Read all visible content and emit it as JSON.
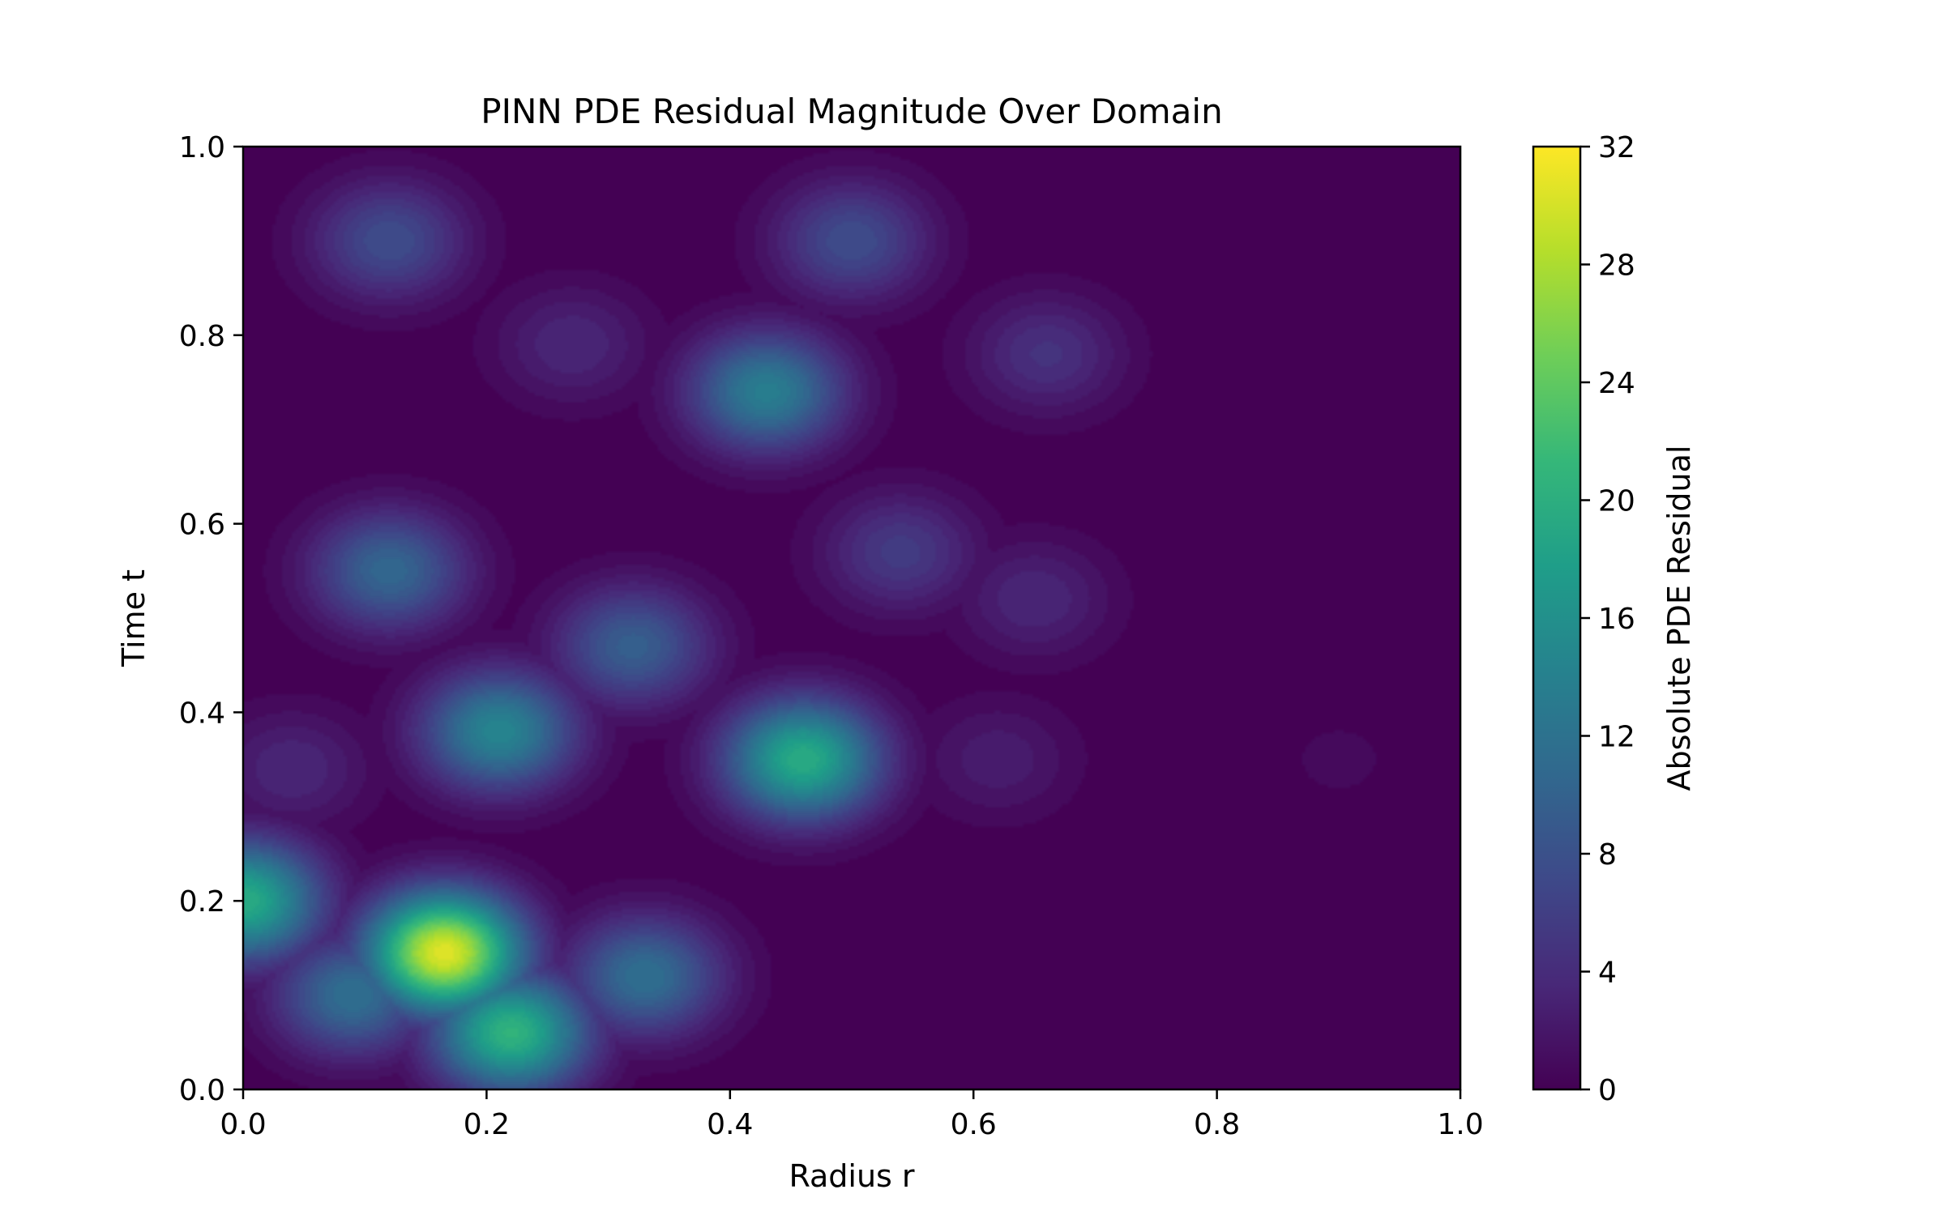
{
  "chart_data": {
    "type": "heatmap",
    "subtype": "filled-contour",
    "title": "PINN PDE Residual Magnitude Over Domain",
    "xlabel": "Radius r",
    "ylabel": "Time t",
    "xlim": [
      0.0,
      1.0
    ],
    "ylim": [
      0.0,
      1.0
    ],
    "x_ticks": [
      "0.0",
      "0.2",
      "0.4",
      "0.6",
      "0.8",
      "1.0"
    ],
    "y_ticks": [
      "0.0",
      "0.2",
      "0.4",
      "0.6",
      "0.8",
      "1.0"
    ],
    "colormap": "viridis",
    "colorbar": {
      "label": "Absolute PDE Residual",
      "range": [
        0,
        32
      ],
      "ticks": [
        "0",
        "4",
        "8",
        "12",
        "16",
        "20",
        "24",
        "28",
        "32"
      ]
    },
    "grid": false,
    "features": [
      {
        "r": 0.165,
        "t": 0.145,
        "value": 31
      },
      {
        "r": 0.22,
        "t": 0.06,
        "value": 21
      },
      {
        "r": 0.0,
        "t": 0.2,
        "value": 20
      },
      {
        "r": 0.46,
        "t": 0.35,
        "value": 20
      },
      {
        "r": 0.09,
        "t": 0.1,
        "value": 12
      },
      {
        "r": 0.33,
        "t": 0.12,
        "value": 12
      },
      {
        "r": 0.21,
        "t": 0.38,
        "value": 15
      },
      {
        "r": 0.43,
        "t": 0.74,
        "value": 14
      },
      {
        "r": 0.5,
        "t": 0.9,
        "value": 8
      },
      {
        "r": 0.12,
        "t": 0.55,
        "value": 11
      },
      {
        "r": 0.12,
        "t": 0.9,
        "value": 8
      },
      {
        "r": 0.32,
        "t": 0.47,
        "value": 10
      },
      {
        "r": 0.54,
        "t": 0.57,
        "value": 6
      },
      {
        "r": 0.65,
        "t": 0.52,
        "value": 4
      },
      {
        "r": 0.66,
        "t": 0.78,
        "value": 5
      },
      {
        "r": 0.04,
        "t": 0.34,
        "value": 4
      },
      {
        "r": 0.27,
        "t": 0.79,
        "value": 4
      },
      {
        "r": 0.62,
        "t": 0.35,
        "value": 3
      },
      {
        "r": 0.9,
        "t": 0.35,
        "value": 1
      }
    ]
  },
  "colors": {
    "viridis": [
      "#440154",
      "#482878",
      "#3e4989",
      "#31688e",
      "#26828e",
      "#1f9e89",
      "#35b779",
      "#6ece58",
      "#b5de2b",
      "#fde725"
    ]
  }
}
